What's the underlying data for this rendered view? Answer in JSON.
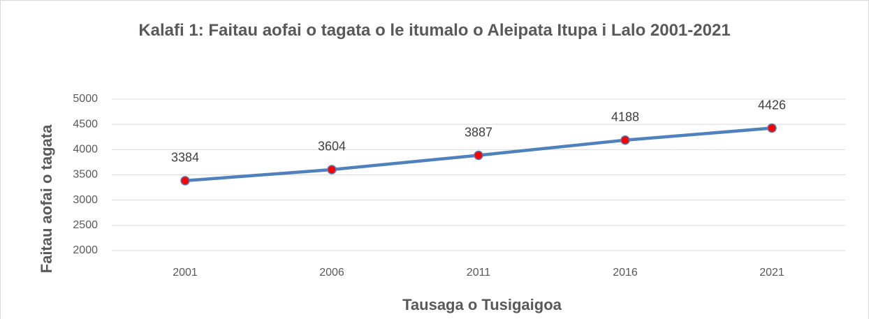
{
  "chart_data": {
    "type": "line",
    "title": "Kalafi 1: Faitau aofai o tagata o le itumalo o Aleipata Itupa i Lalo 2001-2021",
    "x_label": "Tausaga o Tusigaigoa",
    "y_label": "Faitau aofai o tagata",
    "categories": [
      "2001",
      "2006",
      "2011",
      "2016",
      "2021"
    ],
    "series": [
      {
        "name": "Faitau aofai o tagata",
        "color": "#4f81bd",
        "marker_color": "#ff0000",
        "values": [
          3384,
          3604,
          3887,
          4188,
          4426
        ]
      }
    ],
    "ylim": [
      2000,
      5000
    ],
    "yticks": [
      2000,
      2500,
      3000,
      3500,
      4000,
      4500,
      5000
    ],
    "grid": true
  }
}
